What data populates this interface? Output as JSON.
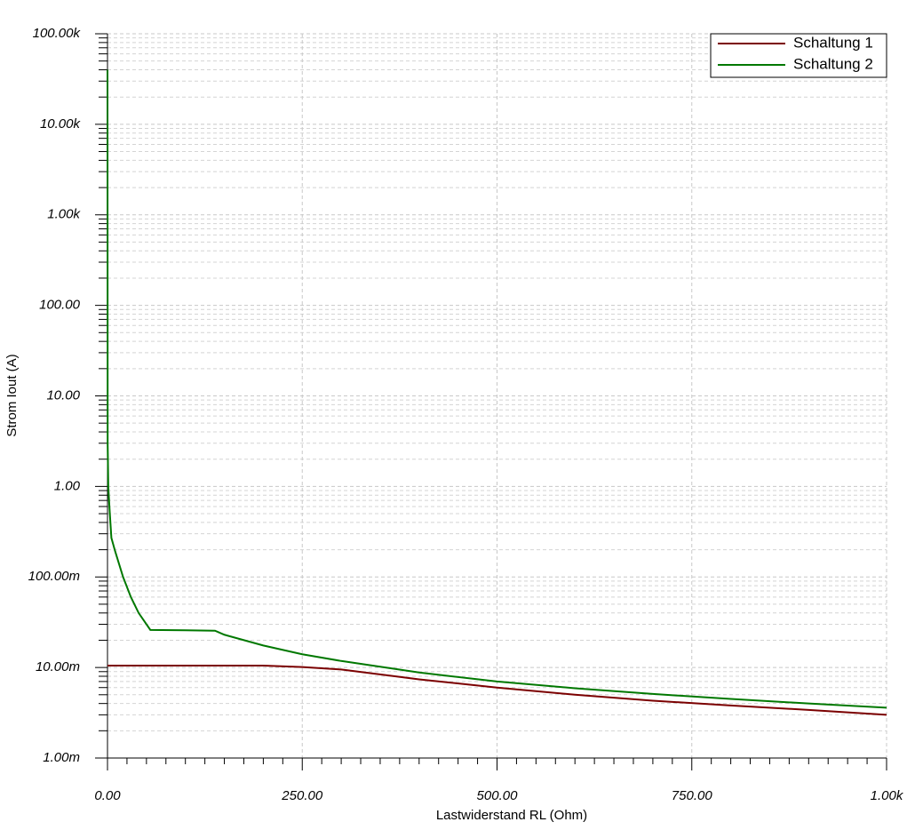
{
  "chart_data": {
    "type": "line",
    "x_label": "Lastwiderstand RL (Ohm)",
    "y_label": "Strom Iout (A)",
    "x": [
      0,
      0.2,
      1,
      2,
      3,
      5,
      10,
      20,
      30,
      40,
      55,
      100,
      138,
      150,
      200,
      250,
      300,
      400,
      500,
      600,
      700,
      800,
      900,
      1000
    ],
    "series": [
      {
        "name": "Schaltung 1",
        "color": "#7b0000",
        "values": [
          0.0105,
          0.0105,
          0.0105,
          0.0105,
          0.0105,
          0.0105,
          0.0105,
          0.0105,
          0.0105,
          0.0105,
          0.0105,
          0.0105,
          0.0105,
          0.0105,
          0.0105,
          0.0101,
          0.0095,
          0.0074,
          0.006,
          0.005,
          0.0043,
          0.0038,
          0.0034,
          0.003
        ]
      },
      {
        "name": "Schaltung 2",
        "color": "#007800",
        "values": [
          40000,
          3,
          1,
          0.7,
          0.5,
          0.27,
          0.19,
          0.1,
          0.06,
          0.04,
          0.026,
          0.0258,
          0.0255,
          0.023,
          0.0175,
          0.014,
          0.0118,
          0.0088,
          0.007,
          0.0059,
          0.0051,
          0.0045,
          0.004,
          0.0036
        ]
      }
    ],
    "xlim": [
      0,
      1000
    ],
    "xticks": [
      {
        "value": 0,
        "label": "0.00"
      },
      {
        "value": 250,
        "label": "250.00"
      },
      {
        "value": 500,
        "label": "500.00"
      },
      {
        "value": 750,
        "label": "750.00"
      },
      {
        "value": 1000,
        "label": "1.00k"
      }
    ],
    "ylim": [
      0.001,
      100000
    ],
    "yticks": [
      {
        "value": 100000,
        "label": "100.00k"
      },
      {
        "value": 10000,
        "label": "10.00k"
      },
      {
        "value": 1000,
        "label": "1.00k"
      },
      {
        "value": 100,
        "label": "100.00"
      },
      {
        "value": 10,
        "label": "10.00"
      },
      {
        "value": 1,
        "label": "1.00"
      },
      {
        "value": 0.1,
        "label": "100.00m"
      },
      {
        "value": 0.01,
        "label": "10.00m"
      },
      {
        "value": 0.001,
        "label": "1.00m"
      }
    ],
    "y_log": true,
    "grid": true,
    "legend": "upper right"
  }
}
